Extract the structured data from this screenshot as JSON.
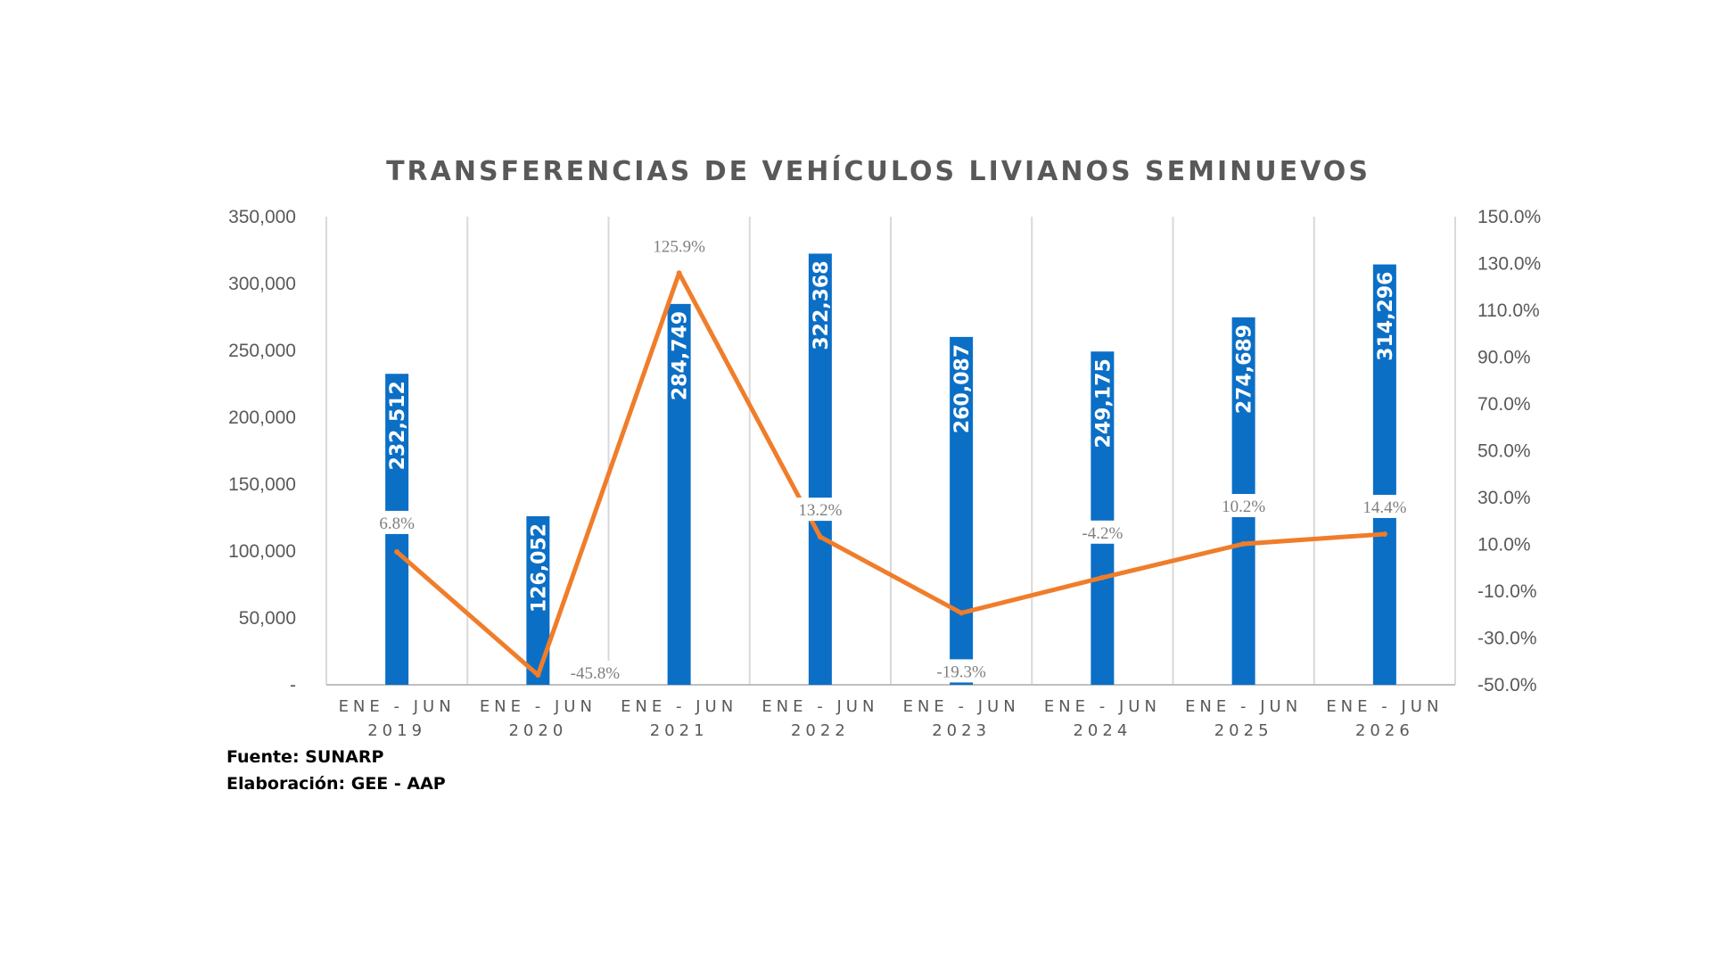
{
  "chart_data": {
    "type": "bar",
    "title": "TRANSFERENCIAS DE VEHÍCULOS LIVIANOS SEMINUEVOS",
    "categories": [
      [
        "ENE - JUN",
        "2019"
      ],
      [
        "ENE - JUN",
        "2020"
      ],
      [
        "ENE - JUN",
        "2021"
      ],
      [
        "ENE - JUN",
        "2022"
      ],
      [
        "ENE - JUN",
        "2023"
      ],
      [
        "ENE - JUN",
        "2024"
      ],
      [
        "ENE - JUN",
        "2025"
      ],
      [
        "ENE - JUN",
        "2026"
      ]
    ],
    "series": [
      {
        "type": "bar",
        "axis": "left",
        "color": "#0b6fc6",
        "values": [
          232512,
          126052,
          284749,
          322368,
          260087,
          249175,
          274689,
          314296
        ],
        "labels": [
          "232,512",
          "126,052",
          "284,749",
          "322,368",
          "260,087",
          "249,175",
          "274,689",
          "314,296"
        ]
      },
      {
        "type": "line",
        "axis": "right",
        "color": "#f07d2a",
        "values": [
          6.8,
          -45.8,
          125.9,
          13.2,
          -19.3,
          -4.2,
          10.2,
          14.4
        ],
        "labels": [
          "6.8%",
          "-45.8%",
          "125.9%",
          "13.2%",
          "-19.3%",
          "-4.2%",
          "10.2%",
          "14.4%"
        ]
      }
    ],
    "y_left": {
      "min": 0,
      "max": 350000,
      "ticks": [
        0,
        50000,
        100000,
        150000,
        200000,
        250000,
        300000,
        350000
      ],
      "tick_labels": [
        "-",
        "50,000",
        "100,000",
        "150,000",
        "200,000",
        "250,000",
        "300,000",
        "350,000"
      ]
    },
    "y_right": {
      "min": -50,
      "max": 150,
      "ticks": [
        -50,
        -30,
        -10,
        10,
        30,
        50,
        70,
        90,
        110,
        130,
        150
      ],
      "tick_labels": [
        "-50.0%",
        "-30.0%",
        "-10.0%",
        "10.0%",
        "30.0%",
        "50.0%",
        "70.0%",
        "90.0%",
        "110.0%",
        "130.0%",
        "150.0%"
      ]
    },
    "grid": "vertical"
  },
  "notes": {
    "source": "Fuente: SUNARP",
    "elaboration": "Elaboración: GEE - AAP"
  }
}
